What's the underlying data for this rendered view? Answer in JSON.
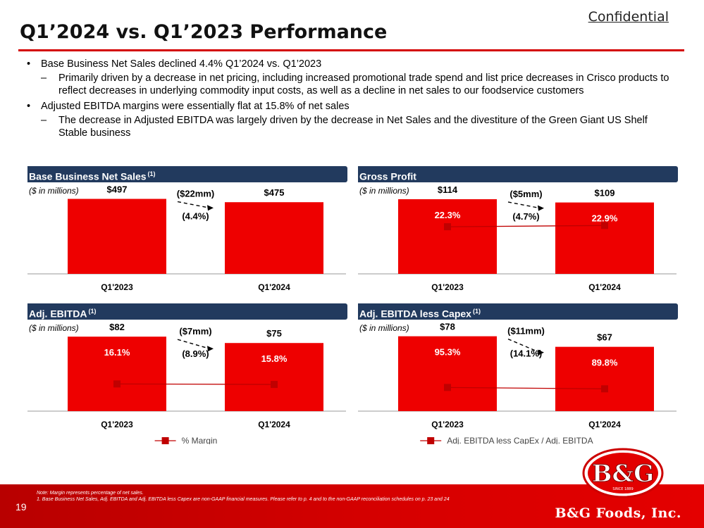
{
  "header": {
    "confidential": "Confidential",
    "title": "Q1’2024 vs. Q1’2023 Performance"
  },
  "bullets": {
    "b1": "Base Business Net Sales declined 4.4% Q1’2024 vs. Q1’2023",
    "b1_sub": "Primarily driven by a decrease in net pricing, including increased promotional trade spend and list price decreases in Crisco products to reflect decreases in underlying commodity input costs, as well as a decline in net sales to our foodservice customers",
    "b2": "Adjusted EBITDA margins were essentially flat at 15.8% of net sales",
    "b2_sub": "The decrease in Adjusted EBITDA was largely driven by the decrease in Net Sales and the divestiture of the Green Giant US Shelf Stable business"
  },
  "chart_data": [
    {
      "type": "bar",
      "title": "Base Business Net Sales",
      "title_sup": "(1)",
      "units": "($ in millions)",
      "categories": [
        "Q1'2023",
        "Q1'2024"
      ],
      "values": [
        497,
        475
      ],
      "value_labels": [
        "$497",
        "$475"
      ],
      "change_amount": "($22mm)",
      "change_pct": "(4.4%)",
      "ylim": [
        0,
        560
      ]
    },
    {
      "type": "bar",
      "title": "Gross Profit",
      "title_sup": "",
      "units": "($ in millions)",
      "categories": [
        "Q1'2023",
        "Q1'2024"
      ],
      "values": [
        114,
        109
      ],
      "value_labels": [
        "$114",
        "$109"
      ],
      "change_amount": "($5mm)",
      "change_pct": "(4.7%)",
      "ylim": [
        0,
        129
      ],
      "line_series": {
        "name": "% Margin",
        "values": [
          22.3,
          22.9
        ],
        "labels": [
          "22.3%",
          "22.9%"
        ],
        "ylim": [
          0,
          40
        ]
      }
    },
    {
      "type": "bar",
      "title": "Adj. EBITDA",
      "title_sup": "(1)",
      "units": "($ in millions)",
      "categories": [
        "Q1'2023",
        "Q1'2024"
      ],
      "values": [
        82,
        75
      ],
      "value_labels": [
        "$82",
        "$75"
      ],
      "change_amount": "($7mm)",
      "change_pct": "(8.9%)",
      "ylim": [
        0,
        93
      ],
      "line_series": {
        "name": "% Margin",
        "values": [
          16.1,
          15.8
        ],
        "labels": [
          "16.1%",
          "15.8%"
        ],
        "ylim": [
          0,
          50
        ]
      }
    },
    {
      "type": "bar",
      "title": "Adj. EBITDA less Capex",
      "title_sup": "(1)",
      "units": "($ in millions)",
      "categories": [
        "Q1'2023",
        "Q1'2024"
      ],
      "values": [
        78,
        67
      ],
      "value_labels": [
        "$78",
        "$67"
      ],
      "change_amount": "($11mm)",
      "change_pct": "(14.1%)",
      "ylim": [
        0,
        88
      ],
      "line_series": {
        "name": "Adj. EBITDA less CapEx / Adj. EBITDA",
        "values": [
          95.3,
          89.8
        ],
        "labels": [
          "95.3%",
          "89.8%"
        ],
        "ylim": [
          0,
          340
        ]
      }
    }
  ],
  "footer": {
    "note": "Note: Margin represents percentage of net sales.",
    "note1": "1.      Base Business Net Sales, Adj. EBITDA and Adj. EBITDA less Capex are non-GAAP financial measures. Please refer to p. 4 and to the non-GAAP reconciliation schedules on p. 23 and 24",
    "page_number": "19",
    "brand": "B&G Foods, Inc.",
    "logo_text": "B&G",
    "logo_since": "SINCE 1889"
  },
  "colors": {
    "bar": "#ee0000",
    "line": "#c00000",
    "header_bg": "#223a5e",
    "accent": "#d40000"
  }
}
